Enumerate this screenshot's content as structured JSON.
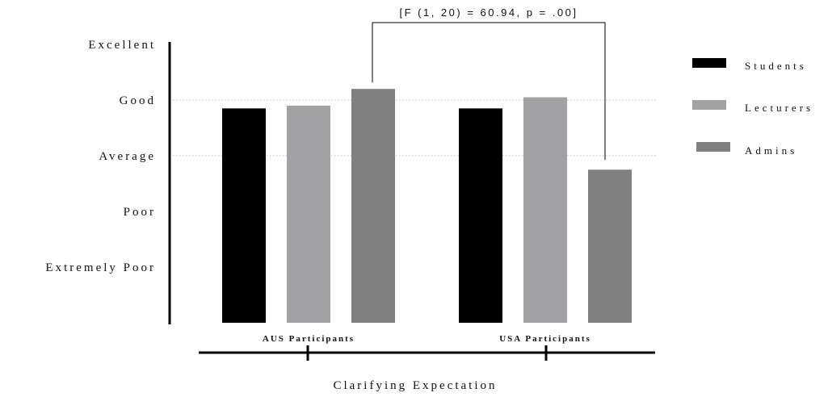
{
  "chart_data": {
    "type": "bar",
    "title": "",
    "xlabel": "Clarifying Expectation",
    "ylabel": "",
    "y_tick_labels": [
      "Extremely Poor",
      "Poor",
      "Average",
      "Good",
      "Excellent"
    ],
    "ylim": [
      0,
      5
    ],
    "categories": [
      "AUS Participants",
      "USA Participants"
    ],
    "series": [
      {
        "name": "Students",
        "values": [
          3.85,
          3.85
        ],
        "color": "#000000"
      },
      {
        "name": "Lecturers",
        "values": [
          3.9,
          4.05
        ],
        "color": "#a2a2a4"
      },
      {
        "name": "Admins",
        "values": [
          4.2,
          2.75
        ],
        "color": "#808080"
      }
    ],
    "reference_lines": [
      3,
      4
    ],
    "annotation": {
      "text": "[F (1, 20) = 60.94, p = .00]",
      "from_series": "Admins",
      "between_categories": [
        "AUS Participants",
        "USA Participants"
      ]
    },
    "legend_position": "right",
    "grid": false
  }
}
